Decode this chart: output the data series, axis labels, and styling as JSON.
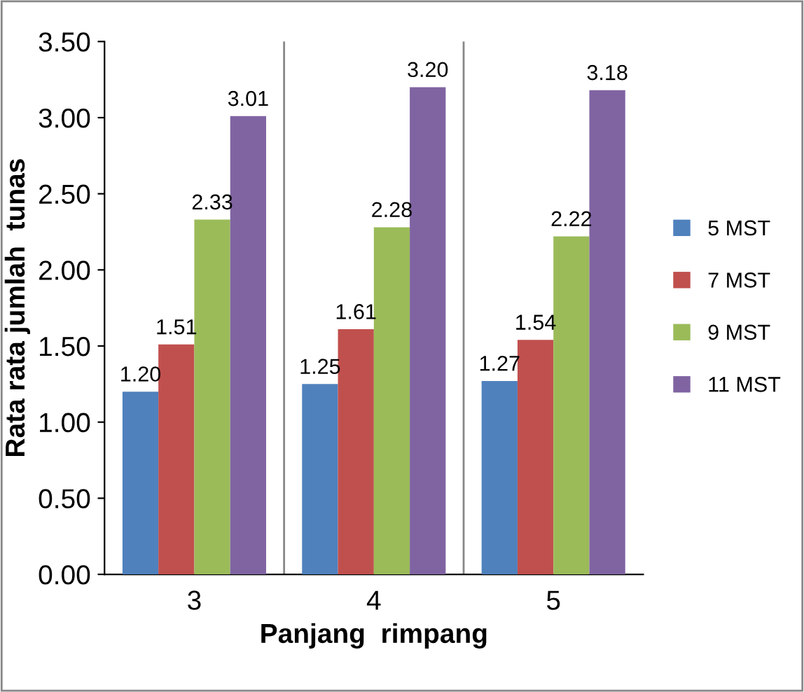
{
  "chart_data": {
    "type": "bar",
    "xlabel": "Panjang  rimpang",
    "ylabel": "Rata rata jumlah  tunas",
    "categories": [
      "3",
      "4",
      "5"
    ],
    "series": [
      {
        "name": "5 MST",
        "color": "#4f81bd",
        "values": [
          1.2,
          1.25,
          1.27
        ],
        "value_labels": [
          "1.20",
          "1.25",
          "1.27"
        ]
      },
      {
        "name": "7 MST",
        "color": "#c0504d",
        "values": [
          1.51,
          1.61,
          1.54
        ],
        "value_labels": [
          "1.51",
          "1.61",
          "1.54"
        ]
      },
      {
        "name": "9 MST",
        "color": "#9bbb59",
        "values": [
          2.33,
          2.28,
          2.22
        ],
        "value_labels": [
          "2.33",
          "2.28",
          "2.22"
        ]
      },
      {
        "name": "11 MST",
        "color": "#8064a2",
        "values": [
          3.01,
          3.2,
          3.18
        ],
        "value_labels": [
          "3.01",
          "3.20",
          "3.18"
        ]
      }
    ],
    "ylim": [
      0,
      3.5
    ],
    "yticks": [
      {
        "value": 0,
        "label": "0.00"
      },
      {
        "value": 0.5,
        "label": "0.50"
      },
      {
        "value": 1,
        "label": "1.00"
      },
      {
        "value": 1.5,
        "label": "1.50"
      },
      {
        "value": 2,
        "label": "2.00"
      },
      {
        "value": 2.5,
        "label": "2.50"
      },
      {
        "value": 3,
        "label": "3.00"
      },
      {
        "value": 3.5,
        "label": "3.50"
      }
    ],
    "grid": "x",
    "legend": "right"
  }
}
